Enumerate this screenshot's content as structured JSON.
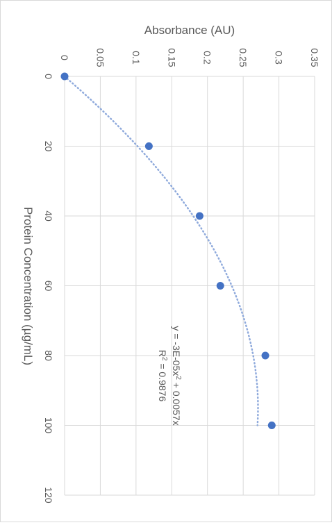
{
  "chart_data": {
    "type": "scatter",
    "orientation": "rotated-90-clockwise",
    "xlabel": "Protein Concentration (µg/mL)",
    "ylabel": "Absorbance (AU)",
    "xlim": [
      0,
      120
    ],
    "ylim": [
      0,
      0.35
    ],
    "x_ticks": [
      "0",
      "20",
      "40",
      "60",
      "80",
      "100",
      "120"
    ],
    "y_ticks": [
      "0",
      "0.05",
      "0.1",
      "0.15",
      "0.2",
      "0.25",
      "0.3",
      "0.35"
    ],
    "grid": true,
    "series": [
      {
        "x": [
          0,
          20,
          40,
          60,
          80,
          100
        ],
        "y": [
          0,
          0.118,
          0.189,
          0.218,
          0.281,
          0.29
        ],
        "color": "#4472c4"
      }
    ],
    "trendline": {
      "type": "polynomial-order-2",
      "a": -3e-05,
      "b": 0.0057,
      "c": 0,
      "color": "#8faadc",
      "style": "dotted",
      "equation_base": "y = -3E-05x",
      "equation_sup": "2",
      "equation_tail": " + 0.0057x",
      "r2_base": "R",
      "r2_sup": "2",
      "r2_tail": " = 0.9876"
    }
  }
}
